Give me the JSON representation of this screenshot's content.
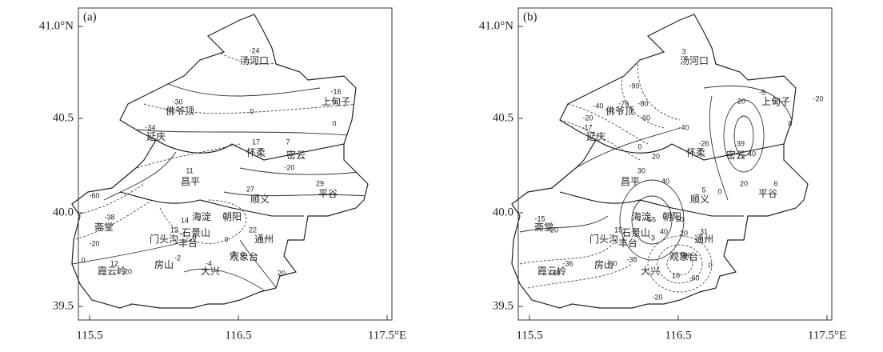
{
  "panels": [
    {
      "label": "(a)",
      "x_ticks": [
        "115.5",
        "116.5",
        "117.5°E"
      ],
      "y_ticks": [
        "41.0°N",
        "40.5",
        "40.0",
        "39.5"
      ],
      "places": [
        "汤河口",
        "上甸子",
        "佛爷顶",
        "延庆",
        "怀柔",
        "密云",
        "昌平",
        "顺义",
        "平谷",
        "斋堂",
        "海淀",
        "朝阳",
        "石景山",
        "门头沟",
        "丰台",
        "通州",
        "房山",
        "观象台",
        "大兴",
        "霞云岭"
      ],
      "contour_labels": [
        "-24",
        "-16",
        "-30",
        "-34",
        "0",
        "0",
        "17",
        "7",
        "-20",
        "11",
        "29",
        "27",
        "-60",
        "-38",
        "-20",
        "0",
        "14",
        "12",
        "8",
        "22",
        "0",
        "-3",
        "-2",
        "-4",
        "12",
        "20",
        "20"
      ]
    },
    {
      "label": "(b)",
      "x_ticks": [
        "115.5",
        "116.5",
        "117.5°E"
      ],
      "y_ticks": [
        "41.0°N",
        "40.5",
        "40.0",
        "39.5"
      ],
      "places": [
        "汤河口",
        "上甸子",
        "佛爷顶",
        "延庆",
        "怀柔",
        "密云",
        "昌平",
        "顺义",
        "平谷",
        "斋堂",
        "海淀",
        "朝阳",
        "石景山",
        "门头沟",
        "丰台",
        "通州",
        "房山",
        "观象台",
        "大兴",
        "霞云岭"
      ],
      "contour_labels": [
        "3",
        "-90",
        "-80",
        "-76",
        "-40",
        "-20",
        "-17",
        "60",
        "-40",
        "-26",
        "20",
        "39",
        "40",
        "-5",
        "-20",
        "0",
        "0",
        "20",
        "30",
        "40",
        "5",
        "0",
        "20",
        "6",
        "-15",
        "20",
        "15",
        "55",
        "50",
        "40",
        "20",
        "31",
        "-3",
        "-60",
        "-38",
        "-40",
        "0",
        "10",
        "-60",
        "-36",
        "-40",
        "-20"
      ]
    }
  ]
}
